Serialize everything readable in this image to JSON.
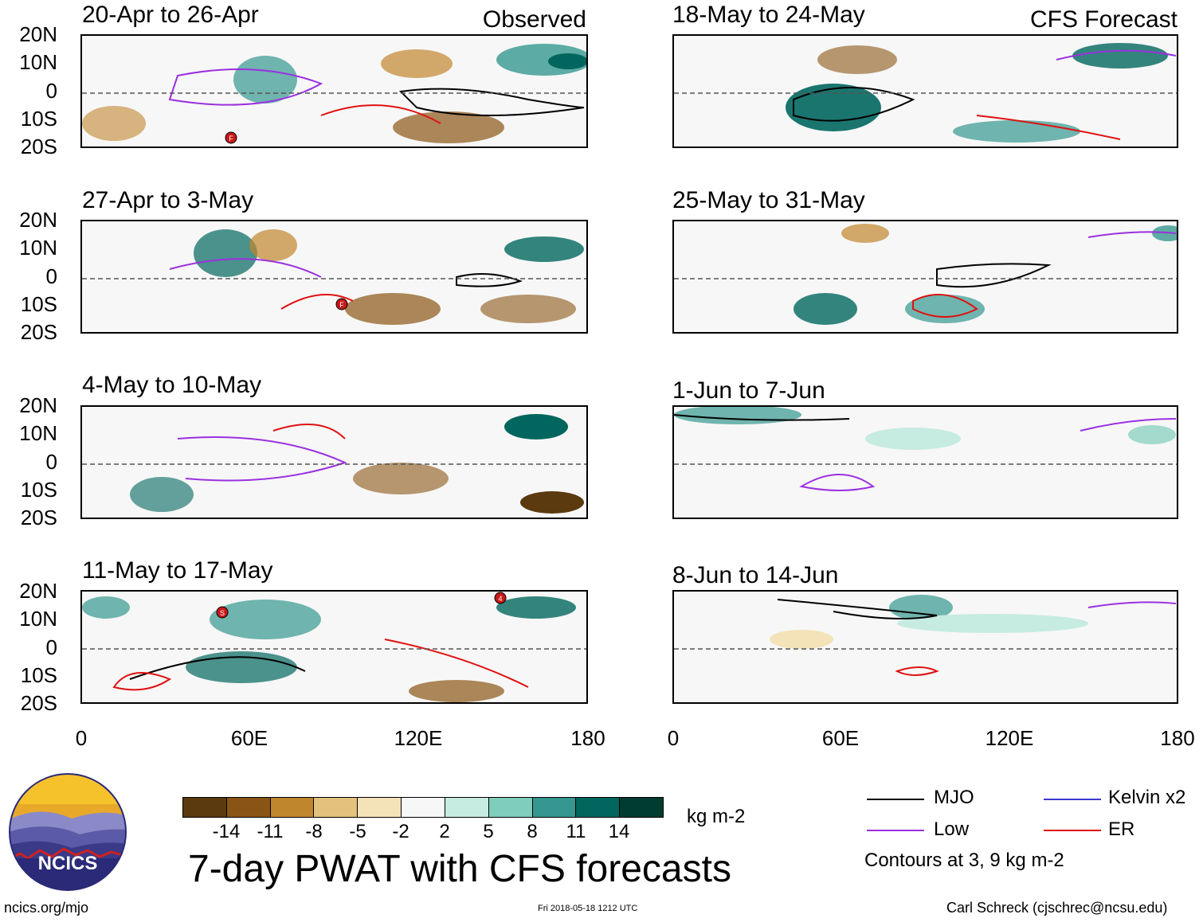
{
  "panels_left": [
    {
      "title": "20-Apr to 26-Apr",
      "tag": "Observed"
    },
    {
      "title": "27-Apr to 3-May",
      "tag": ""
    },
    {
      "title": "4-May to 10-May",
      "tag": ""
    },
    {
      "title": "11-May to 17-May",
      "tag": ""
    }
  ],
  "panels_right": [
    {
      "title": "18-May to 24-May",
      "tag": "CFS Forecast"
    },
    {
      "title": "25-May to 31-May",
      "tag": ""
    },
    {
      "title": "1-Jun to 7-Jun",
      "tag": ""
    },
    {
      "title": "8-Jun to 14-Jun",
      "tag": ""
    }
  ],
  "y_ticks": [
    "20N",
    "10N",
    "0",
    "10S",
    "20S"
  ],
  "x_ticks": [
    "0",
    "60E",
    "120E",
    "180"
  ],
  "colorbar": {
    "labels": [
      "-14",
      "-11",
      "-8",
      "-5",
      "-2",
      "2",
      "5",
      "8",
      "11",
      "14"
    ],
    "colors": [
      "#5a3a0e",
      "#8a5514",
      "#c0862e",
      "#e2c27c",
      "#f4e3b8",
      "#f7f7f7",
      "#c6ebe1",
      "#7fcdbb",
      "#35978f",
      "#01665e",
      "#003c30"
    ],
    "units": "kg m-2"
  },
  "legend": {
    "items": [
      {
        "label": "MJO",
        "color": "#000000"
      },
      {
        "label": "Kelvin x2",
        "color": "#3b3bd0"
      },
      {
        "label": "Low",
        "color": "#9b30e0"
      },
      {
        "label": "ER",
        "color": "#e01010"
      }
    ],
    "note": "Contours at 3, 9 kg m-2"
  },
  "logo_text": "NCICS",
  "main_title": "7-day PWAT with CFS forecasts",
  "footer": {
    "url": "ncics.org/mjo",
    "timestamp": "Fri 2018-05-18 1212 UTC",
    "author": "Carl Schreck (cjschrec@ncsu.edu)"
  },
  "storm_markers": [
    {
      "label": "F"
    },
    {
      "label": "F"
    },
    {
      "label": "S"
    },
    {
      "label": "4"
    }
  ]
}
